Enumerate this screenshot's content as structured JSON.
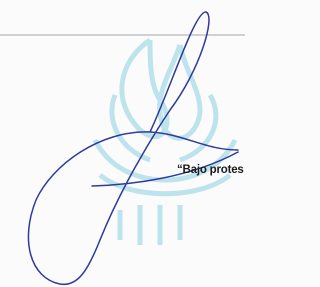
{
  "text": "“Bajo protes"
}
